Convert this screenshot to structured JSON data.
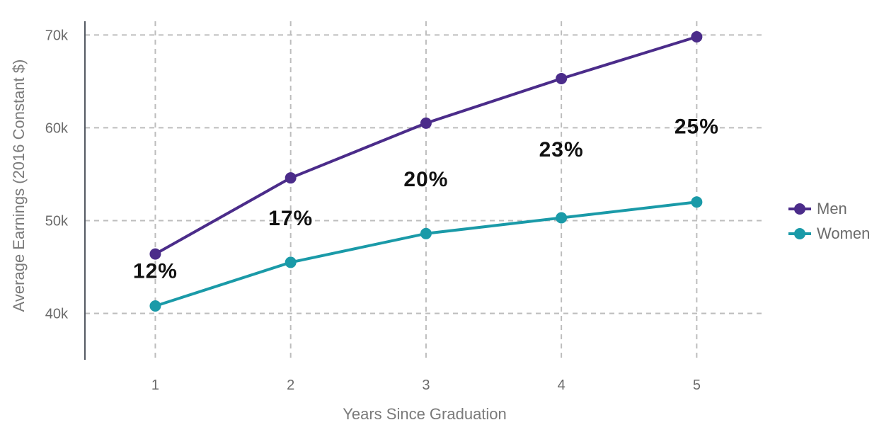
{
  "chart_data": {
    "type": "line",
    "xlabel": "Years Since Graduation",
    "ylabel": "Average Earnings (2016 Constant $)",
    "x": [
      1,
      2,
      3,
      4,
      5
    ],
    "x_tick_labels": [
      "1",
      "2",
      "3",
      "4",
      "5"
    ],
    "y_ticks": [
      40000,
      50000,
      60000,
      70000
    ],
    "y_tick_labels": [
      "40k",
      "50k",
      "60k",
      "70k"
    ],
    "xlim": [
      0.48,
      5.5
    ],
    "ylim": [
      35000,
      72700
    ],
    "grid": true,
    "legend_position": "right",
    "series": [
      {
        "name": "Men",
        "color": "#4b2c8a",
        "values": [
          46400,
          54600,
          60500,
          65300,
          69800
        ]
      },
      {
        "name": "Women",
        "color": "#1a9aa8",
        "values": [
          40800,
          45500,
          48600,
          50300,
          52000
        ]
      }
    ],
    "annotations": [
      {
        "text": "12%",
        "x": 1,
        "y": 43800
      },
      {
        "text": "17%",
        "x": 2,
        "y": 49500
      },
      {
        "text": "20%",
        "x": 3,
        "y": 53700
      },
      {
        "text": "23%",
        "x": 4,
        "y": 56900
      },
      {
        "text": "25%",
        "x": 5,
        "y": 59400
      }
    ]
  }
}
